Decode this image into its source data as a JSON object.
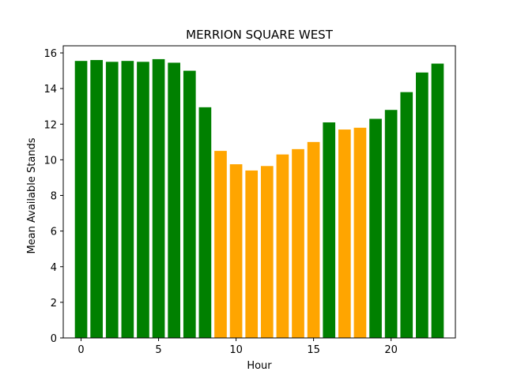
{
  "chart_data": {
    "type": "bar",
    "title": "MERRION SQUARE WEST",
    "xlabel": "Hour",
    "ylabel": "Mean Available Stands",
    "x": [
      0,
      1,
      2,
      3,
      4,
      5,
      6,
      7,
      8,
      9,
      10,
      11,
      12,
      13,
      14,
      15,
      16,
      17,
      18,
      19,
      20,
      21,
      22,
      23
    ],
    "values": [
      15.55,
      15.6,
      15.5,
      15.55,
      15.5,
      15.65,
      15.45,
      15.0,
      12.95,
      10.5,
      9.75,
      9.4,
      9.65,
      10.3,
      10.6,
      11.0,
      12.1,
      11.7,
      11.8,
      12.3,
      12.8,
      13.8,
      14.9,
      15.4
    ],
    "bar_colors": [
      "#008000",
      "#008000",
      "#008000",
      "#008000",
      "#008000",
      "#008000",
      "#008000",
      "#008000",
      "#008000",
      "#ffa500",
      "#ffa500",
      "#ffa500",
      "#ffa500",
      "#ffa500",
      "#ffa500",
      "#ffa500",
      "#008000",
      "#ffa500",
      "#ffa500",
      "#008000",
      "#008000",
      "#008000",
      "#008000",
      "#008000"
    ],
    "xlim": [
      -1.15,
      24.15
    ],
    "ylim": [
      0,
      16.4
    ],
    "x_ticks": [
      0,
      5,
      10,
      15,
      20
    ],
    "y_ticks": [
      0,
      2,
      4,
      6,
      8,
      10,
      12,
      14,
      16
    ],
    "grid": false,
    "legend": "none"
  }
}
